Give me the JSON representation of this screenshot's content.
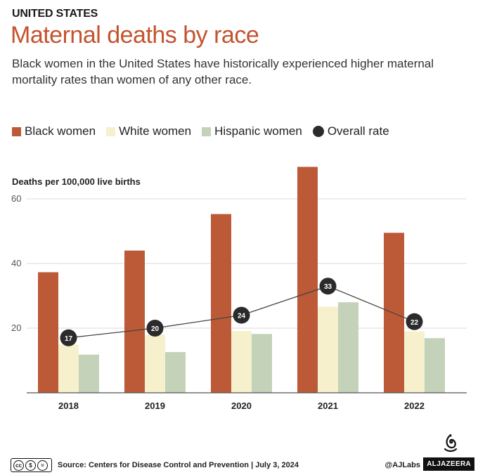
{
  "header": {
    "kicker": "UNITED STATES",
    "title": "Maternal deaths by race",
    "subtitle": "Black women in the United States have historically experienced higher maternal mortality rates than women of any other race."
  },
  "legend": [
    {
      "label": "Black women",
      "color": "#bc5a38",
      "shape": "square"
    },
    {
      "label": "White women",
      "color": "#f7f0cc",
      "shape": "square"
    },
    {
      "label": "Hispanic women",
      "color": "#c3d2b8",
      "shape": "square"
    },
    {
      "label": "Overall rate",
      "color": "#2b2b2b",
      "shape": "circle"
    }
  ],
  "chart_data": {
    "type": "bar",
    "ylabel": "Deaths per 100,000 live births",
    "ylim": [
      0,
      60
    ],
    "yticks": [
      20,
      40,
      60
    ],
    "grid": true,
    "categories": [
      "2018",
      "2019",
      "2020",
      "2021",
      "2022"
    ],
    "series": [
      {
        "name": "Black women",
        "values": [
          37.3,
          44.0,
          55.3,
          69.9,
          49.5
        ],
        "color": "#bc5a38"
      },
      {
        "name": "White women",
        "values": [
          14.9,
          17.9,
          19.1,
          26.6,
          19.0
        ],
        "color": "#f7f0cc"
      },
      {
        "name": "Hispanic women",
        "values": [
          11.8,
          12.6,
          18.2,
          28.0,
          16.9
        ],
        "color": "#c3d2b8"
      }
    ],
    "line": {
      "name": "Overall rate",
      "values": [
        17,
        20,
        24,
        33,
        22
      ],
      "labels": [
        "17",
        "20",
        "24",
        "33",
        "22"
      ],
      "color": "#2b2b2b"
    }
  },
  "footer": {
    "license": "CC BY NC SA",
    "source": "Source:  Centers for Disease Control and Prevention  |  July 3, 2024",
    "handle": "@AJLabs",
    "brand": "ALJAZEERA"
  }
}
